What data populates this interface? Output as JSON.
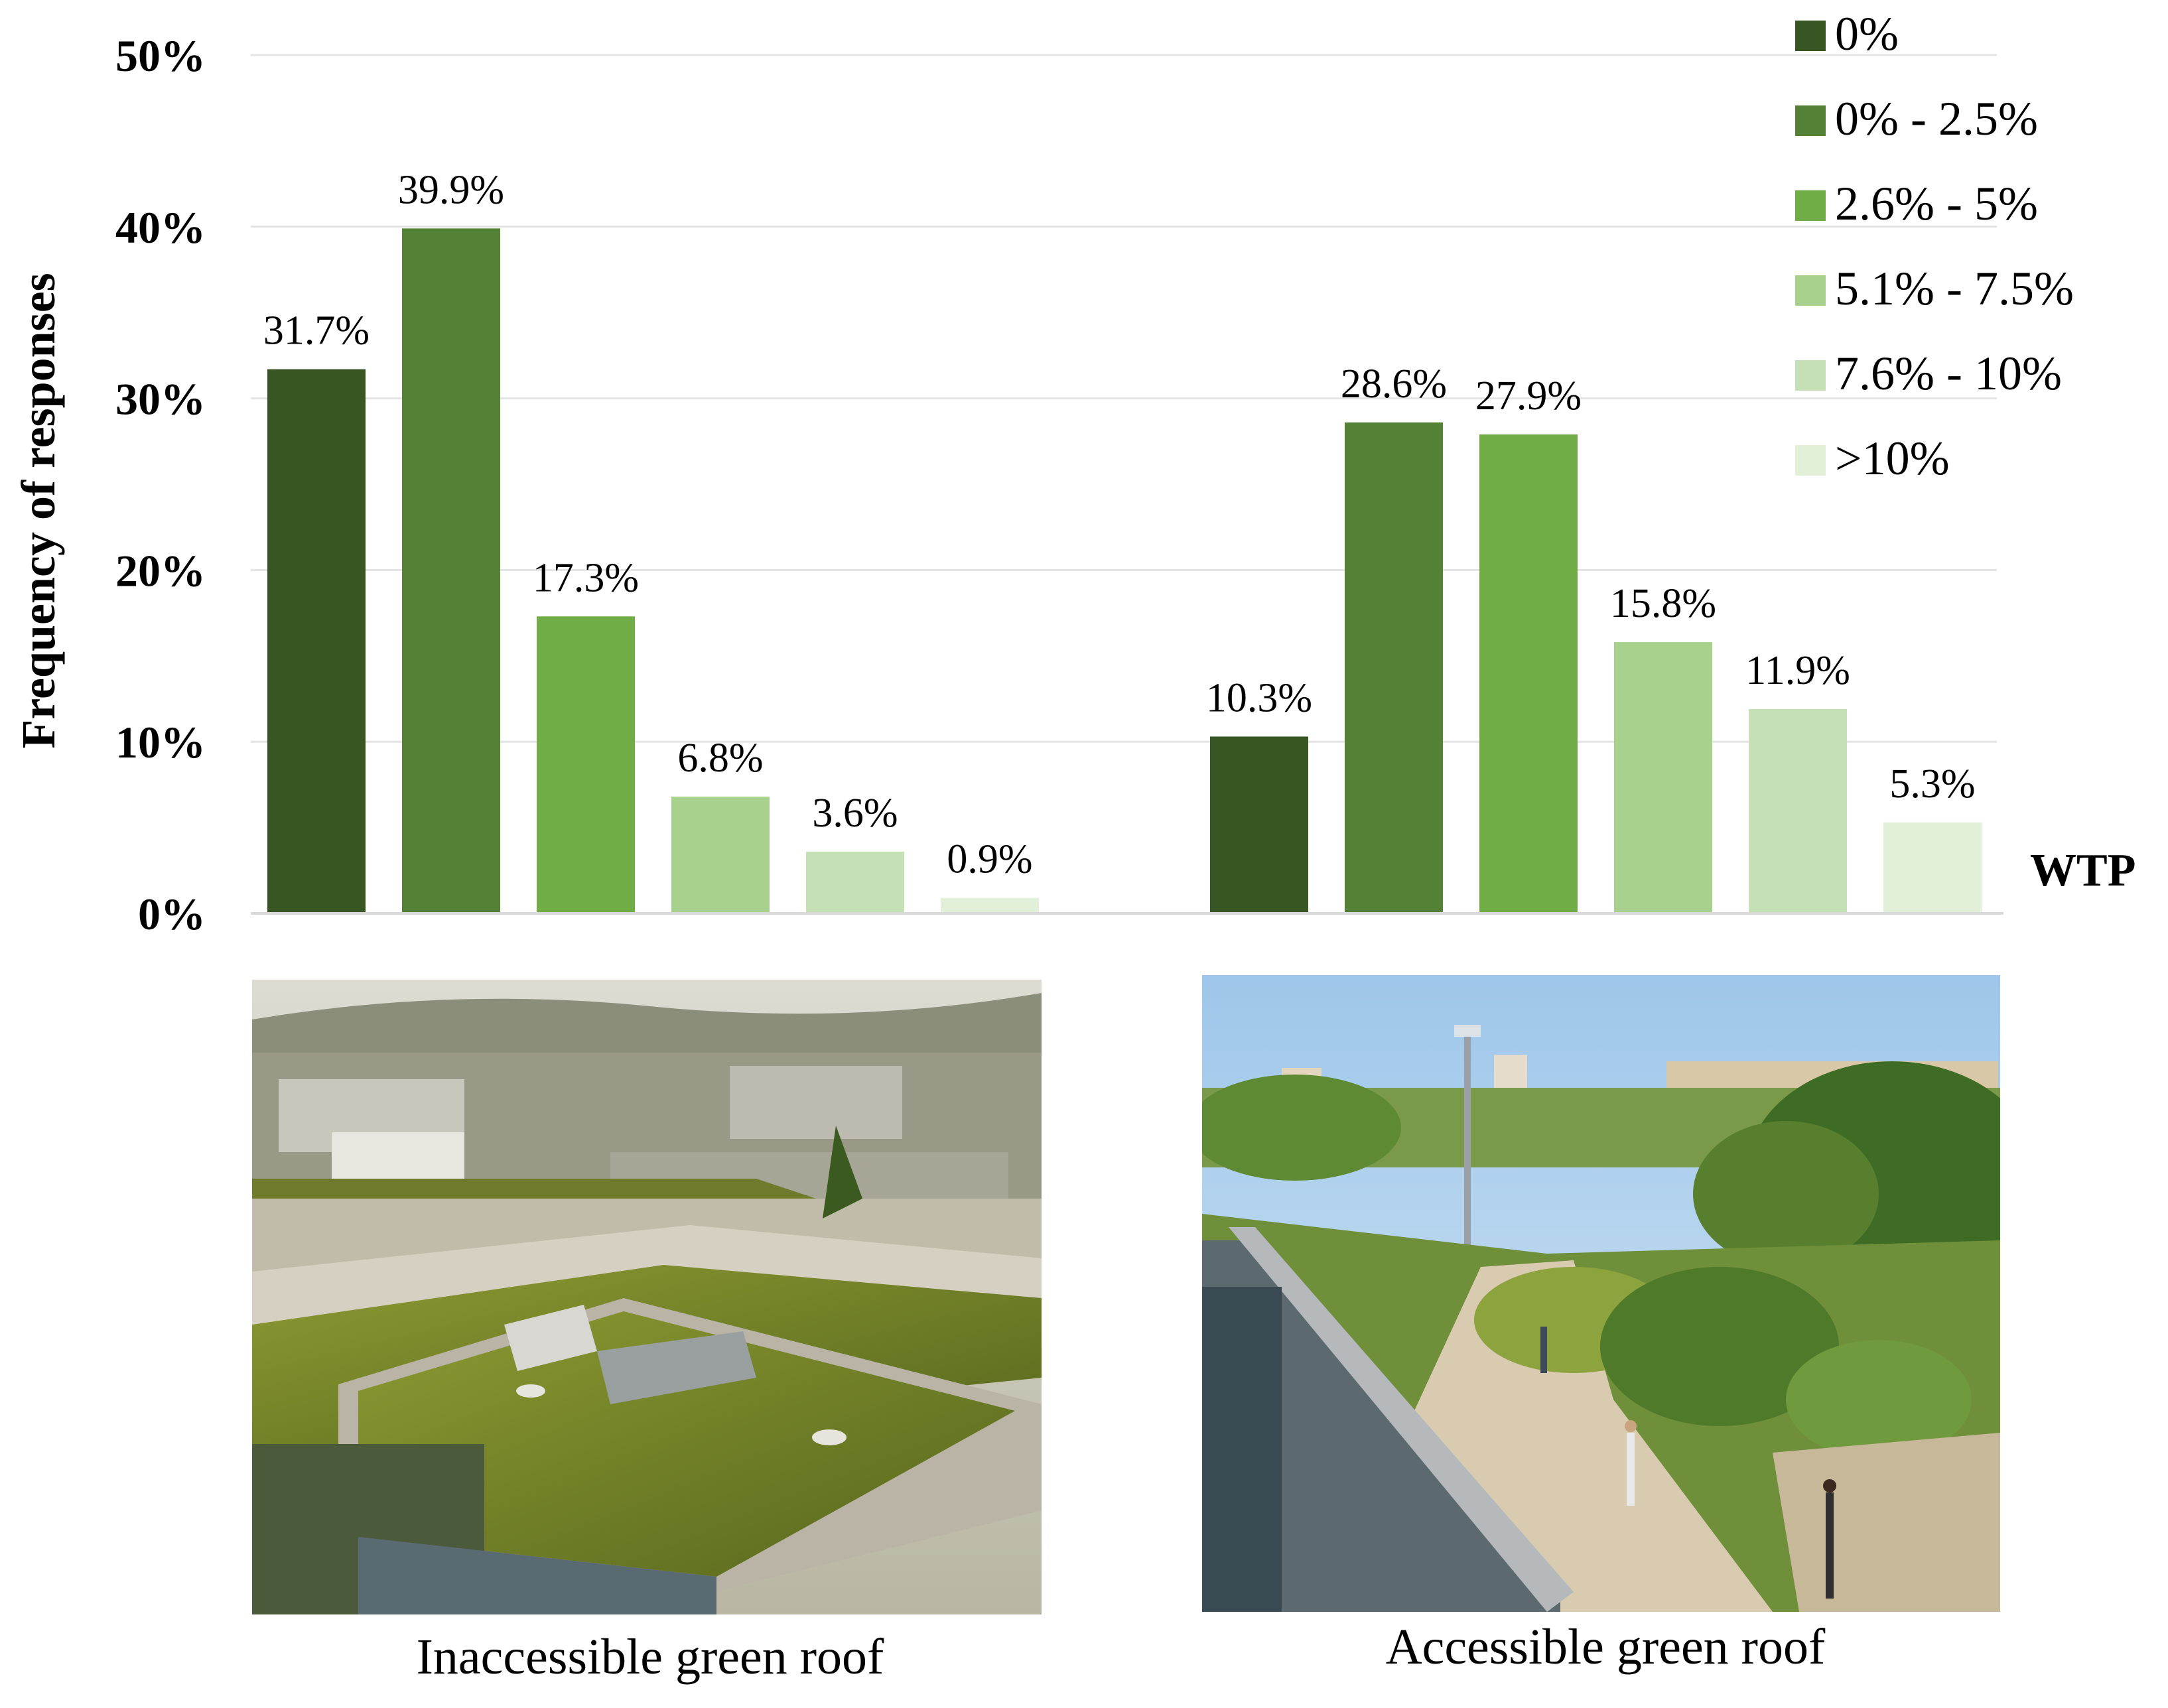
{
  "chart_data": {
    "type": "bar",
    "title": "",
    "ylabel": "Frequency of responses",
    "xlabel": "WTP",
    "ylim": [
      0,
      50
    ],
    "yticks": [
      0,
      10,
      20,
      30,
      40,
      50
    ],
    "ytick_labels": [
      "0%",
      "10%",
      "20%",
      "30%",
      "40%",
      "50%"
    ],
    "grid": true,
    "legend_position": "top-right",
    "groups": [
      "Inaccessible green roof",
      "Accessible green roof"
    ],
    "series": [
      {
        "name": "0%",
        "color": "#375623",
        "values": [
          31.7,
          10.3
        ],
        "labels": [
          "31.7%",
          "10.3%"
        ]
      },
      {
        "name": "0% - 2.5%",
        "color": "#538135",
        "values": [
          39.9,
          28.6
        ],
        "labels": [
          "39.9%",
          "28.6%"
        ]
      },
      {
        "name": "2.6% - 5%",
        "color": "#70AD47",
        "values": [
          17.3,
          27.9
        ],
        "labels": [
          "17.3%",
          "27.9%"
        ]
      },
      {
        "name": "5.1% - 7.5%",
        "color": "#A9D18E",
        "values": [
          6.8,
          15.8
        ],
        "labels": [
          "6.8%",
          "15.8%"
        ]
      },
      {
        "name": "7.6% - 10%",
        "color": "#C5E0B4",
        "values": [
          3.6,
          11.9
        ],
        "labels": [
          "3.6%",
          "11.9%"
        ]
      },
      {
        "name": ">10%",
        "color": "#E2F0D9",
        "values": [
          0.9,
          5.3
        ],
        "labels": [
          "0.9%",
          "5.3%"
        ]
      }
    ]
  },
  "captions": {
    "left": "Inaccessible green roof",
    "right": "Accessible green roof"
  },
  "photo_icons": {
    "left": "inaccessible-green-roof-photo",
    "right": "accessible-green-roof-photo"
  }
}
